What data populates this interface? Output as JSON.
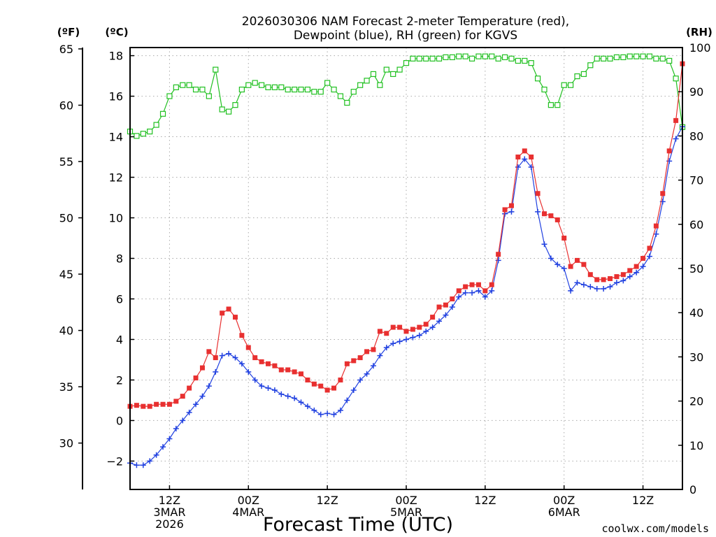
{
  "chart_data": {
    "type": "line",
    "title_line1": "2026030306 NAM Forecast 2-meter Temperature (red),",
    "title_line2": "Dewpoint (blue), RH (green) for KGVS",
    "xlabel": "Forecast Time (UTC)",
    "credit": "coolwx.com/models",
    "axis_label_f": "(ºF)",
    "axis_label_c": "(ºC)",
    "axis_label_rh": "(RH)",
    "x_range_hours": [
      0,
      84
    ],
    "left_c_range": [
      -3.4,
      18.4
    ],
    "left_c_ticks": [
      "-2",
      "0",
      "2",
      "4",
      "6",
      "8",
      "10",
      "12",
      "14",
      "16",
      "18"
    ],
    "left_f_ticks": [
      "30",
      "35",
      "40",
      "45",
      "50",
      "55",
      "60",
      "65"
    ],
    "rh_range": [
      0,
      100
    ],
    "rh_ticks": [
      "0",
      "10",
      "20",
      "30",
      "40",
      "50",
      "60",
      "70",
      "80",
      "90",
      "100"
    ],
    "x_ticks": [
      {
        "hour": 6,
        "line1": "12Z",
        "line2": "3MAR",
        "line3": "2026"
      },
      {
        "hour": 18,
        "line1": "00Z",
        "line2": "4MAR",
        "line3": ""
      },
      {
        "hour": 30,
        "line1": "12Z",
        "line2": "",
        "line3": ""
      },
      {
        "hour": 42,
        "line1": "00Z",
        "line2": "5MAR",
        "line3": ""
      },
      {
        "hour": 54,
        "line1": "12Z",
        "line2": "",
        "line3": ""
      },
      {
        "hour": 66,
        "line1": "00Z",
        "line2": "6MAR",
        "line3": ""
      },
      {
        "hour": 78,
        "line1": "12Z",
        "line2": "",
        "line3": ""
      }
    ],
    "grid": true,
    "colors": {
      "temperature": "#e83030",
      "dewpoint": "#2040e0",
      "rh": "#20c020",
      "credit": "#e03030"
    },
    "series": [
      {
        "key": "temperature",
        "axis": "C",
        "marker": "square",
        "values": [
          [
            0,
            0.7
          ],
          [
            1,
            0.75
          ],
          [
            2,
            0.7
          ],
          [
            3,
            0.7
          ],
          [
            4,
            0.8
          ],
          [
            5,
            0.8
          ],
          [
            6,
            0.8
          ],
          [
            7,
            0.95
          ],
          [
            8,
            1.2
          ],
          [
            9,
            1.6
          ],
          [
            10,
            2.1
          ],
          [
            11,
            2.6
          ],
          [
            12,
            3.4
          ],
          [
            13,
            3.1
          ],
          [
            14,
            5.3
          ],
          [
            15,
            5.5
          ],
          [
            16,
            5.1
          ],
          [
            17,
            4.2
          ],
          [
            18,
            3.6
          ],
          [
            19,
            3.1
          ],
          [
            20,
            2.9
          ],
          [
            21,
            2.8
          ],
          [
            22,
            2.7
          ],
          [
            23,
            2.5
          ],
          [
            24,
            2.5
          ],
          [
            25,
            2.4
          ],
          [
            26,
            2.3
          ],
          [
            27,
            2.0
          ],
          [
            28,
            1.8
          ],
          [
            29,
            1.7
          ],
          [
            30,
            1.5
          ],
          [
            31,
            1.6
          ],
          [
            32,
            2.0
          ],
          [
            33,
            2.8
          ],
          [
            34,
            2.95
          ],
          [
            35,
            3.1
          ],
          [
            36,
            3.4
          ],
          [
            37,
            3.5
          ],
          [
            38,
            4.4
          ],
          [
            39,
            4.3
          ],
          [
            40,
            4.6
          ],
          [
            41,
            4.6
          ],
          [
            42,
            4.4
          ],
          [
            43,
            4.5
          ],
          [
            44,
            4.6
          ],
          [
            45,
            4.75
          ],
          [
            46,
            5.1
          ],
          [
            47,
            5.6
          ],
          [
            48,
            5.7
          ],
          [
            49,
            6.0
          ],
          [
            50,
            6.4
          ],
          [
            51,
            6.6
          ],
          [
            52,
            6.7
          ],
          [
            53,
            6.7
          ],
          [
            54,
            6.4
          ],
          [
            55,
            6.7
          ],
          [
            56,
            8.2
          ],
          [
            57,
            10.4
          ],
          [
            58,
            10.6
          ],
          [
            59,
            13.0
          ],
          [
            60,
            13.3
          ],
          [
            61,
            13.0
          ],
          [
            62,
            11.2
          ],
          [
            63,
            10.2
          ],
          [
            64,
            10.1
          ],
          [
            65,
            9.9
          ],
          [
            66,
            9.0
          ],
          [
            67,
            7.6
          ],
          [
            68,
            7.9
          ],
          [
            69,
            7.7
          ],
          [
            70,
            7.2
          ],
          [
            71,
            6.95
          ],
          [
            72,
            6.95
          ],
          [
            73,
            7.0
          ],
          [
            74,
            7.1
          ],
          [
            75,
            7.2
          ],
          [
            76,
            7.4
          ],
          [
            77,
            7.6
          ],
          [
            78,
            8.0
          ],
          [
            79,
            8.5
          ],
          [
            80,
            9.6
          ],
          [
            81,
            11.2
          ],
          [
            82,
            13.3
          ],
          [
            83,
            14.8
          ],
          [
            84,
            17.6
          ]
        ]
      },
      {
        "key": "dewpoint",
        "axis": "C",
        "marker": "plus",
        "values": [
          [
            0,
            -2.1
          ],
          [
            1,
            -2.2
          ],
          [
            2,
            -2.2
          ],
          [
            3,
            -2.0
          ],
          [
            4,
            -1.7
          ],
          [
            5,
            -1.3
          ],
          [
            6,
            -0.9
          ],
          [
            7,
            -0.4
          ],
          [
            8,
            0.0
          ],
          [
            9,
            0.4
          ],
          [
            10,
            0.8
          ],
          [
            11,
            1.2
          ],
          [
            12,
            1.7
          ],
          [
            13,
            2.4
          ],
          [
            14,
            3.2
          ],
          [
            15,
            3.3
          ],
          [
            16,
            3.1
          ],
          [
            17,
            2.8
          ],
          [
            18,
            2.4
          ],
          [
            19,
            2.0
          ],
          [
            20,
            1.7
          ],
          [
            21,
            1.6
          ],
          [
            22,
            1.5
          ],
          [
            23,
            1.3
          ],
          [
            24,
            1.2
          ],
          [
            25,
            1.1
          ],
          [
            26,
            0.9
          ],
          [
            27,
            0.7
          ],
          [
            28,
            0.5
          ],
          [
            29,
            0.3
          ],
          [
            30,
            0.35
          ],
          [
            31,
            0.3
          ],
          [
            32,
            0.5
          ],
          [
            33,
            1.0
          ],
          [
            34,
            1.5
          ],
          [
            35,
            2.0
          ],
          [
            36,
            2.3
          ],
          [
            37,
            2.7
          ],
          [
            38,
            3.2
          ],
          [
            39,
            3.6
          ],
          [
            40,
            3.8
          ],
          [
            41,
            3.9
          ],
          [
            42,
            4.0
          ],
          [
            43,
            4.1
          ],
          [
            44,
            4.2
          ],
          [
            45,
            4.4
          ],
          [
            46,
            4.6
          ],
          [
            47,
            4.9
          ],
          [
            48,
            5.2
          ],
          [
            49,
            5.6
          ],
          [
            50,
            6.1
          ],
          [
            51,
            6.3
          ],
          [
            52,
            6.3
          ],
          [
            53,
            6.4
          ],
          [
            54,
            6.1
          ],
          [
            55,
            6.4
          ],
          [
            56,
            7.9
          ],
          [
            57,
            10.2
          ],
          [
            58,
            10.3
          ],
          [
            59,
            12.5
          ],
          [
            60,
            12.9
          ],
          [
            61,
            12.5
          ],
          [
            62,
            10.3
          ],
          [
            63,
            8.7
          ],
          [
            64,
            8.0
          ],
          [
            65,
            7.7
          ],
          [
            66,
            7.5
          ],
          [
            67,
            6.4
          ],
          [
            68,
            6.8
          ],
          [
            69,
            6.7
          ],
          [
            70,
            6.6
          ],
          [
            71,
            6.5
          ],
          [
            72,
            6.5
          ],
          [
            73,
            6.6
          ],
          [
            74,
            6.8
          ],
          [
            75,
            6.9
          ],
          [
            76,
            7.1
          ],
          [
            77,
            7.3
          ],
          [
            78,
            7.6
          ],
          [
            79,
            8.1
          ],
          [
            80,
            9.2
          ],
          [
            81,
            10.8
          ],
          [
            82,
            12.8
          ],
          [
            83,
            13.9
          ],
          [
            84,
            14.5
          ]
        ]
      },
      {
        "key": "rh",
        "axis": "RH",
        "marker": "open-square",
        "values": [
          [
            0,
            81
          ],
          [
            1,
            80
          ],
          [
            2,
            80.5
          ],
          [
            3,
            81
          ],
          [
            4,
            82.5
          ],
          [
            5,
            85
          ],
          [
            6,
            89
          ],
          [
            7,
            91
          ],
          [
            8,
            91.5
          ],
          [
            9,
            91.5
          ],
          [
            10,
            90.5
          ],
          [
            11,
            90.5
          ],
          [
            12,
            89
          ],
          [
            13,
            95
          ],
          [
            14,
            86
          ],
          [
            15,
            85.5
          ],
          [
            16,
            87
          ],
          [
            17,
            90.5
          ],
          [
            18,
            91.5
          ],
          [
            19,
            92
          ],
          [
            20,
            91.5
          ],
          [
            21,
            91
          ],
          [
            22,
            91
          ],
          [
            23,
            91
          ],
          [
            24,
            90.5
          ],
          [
            25,
            90.5
          ],
          [
            26,
            90.5
          ],
          [
            27,
            90.5
          ],
          [
            28,
            90
          ],
          [
            29,
            90
          ],
          [
            30,
            92
          ],
          [
            31,
            90.5
          ],
          [
            32,
            89
          ],
          [
            33,
            87.5
          ],
          [
            34,
            90
          ],
          [
            35,
            91.5
          ],
          [
            36,
            92.5
          ],
          [
            37,
            94
          ],
          [
            38,
            91.5
          ],
          [
            39,
            95
          ],
          [
            40,
            94
          ],
          [
            41,
            95
          ],
          [
            42,
            96.5
          ],
          [
            43,
            97.5
          ],
          [
            44,
            97.5
          ],
          [
            45,
            97.5
          ],
          [
            46,
            97.5
          ],
          [
            47,
            97.5
          ],
          [
            48,
            97.8
          ],
          [
            49,
            97.8
          ],
          [
            50,
            98
          ],
          [
            51,
            98
          ],
          [
            52,
            97.5
          ],
          [
            53,
            98
          ],
          [
            54,
            98
          ],
          [
            55,
            98
          ],
          [
            56,
            97.5
          ],
          [
            57,
            97.8
          ],
          [
            58,
            97.5
          ],
          [
            59,
            97
          ],
          [
            60,
            97
          ],
          [
            61,
            96.5
          ],
          [
            62,
            93
          ],
          [
            63,
            90.5
          ],
          [
            64,
            87
          ],
          [
            65,
            87
          ],
          [
            66,
            91.5
          ],
          [
            67,
            91.5
          ],
          [
            68,
            93.5
          ],
          [
            69,
            94
          ],
          [
            70,
            96
          ],
          [
            71,
            97.5
          ],
          [
            72,
            97.5
          ],
          [
            73,
            97.5
          ],
          [
            74,
            97.8
          ],
          [
            75,
            97.8
          ],
          [
            76,
            98
          ],
          [
            77,
            98
          ],
          [
            78,
            98
          ],
          [
            79,
            98
          ],
          [
            80,
            97.5
          ],
          [
            81,
            97.5
          ],
          [
            82,
            97
          ],
          [
            83,
            93
          ],
          [
            84,
            82
          ]
        ]
      }
    ]
  }
}
